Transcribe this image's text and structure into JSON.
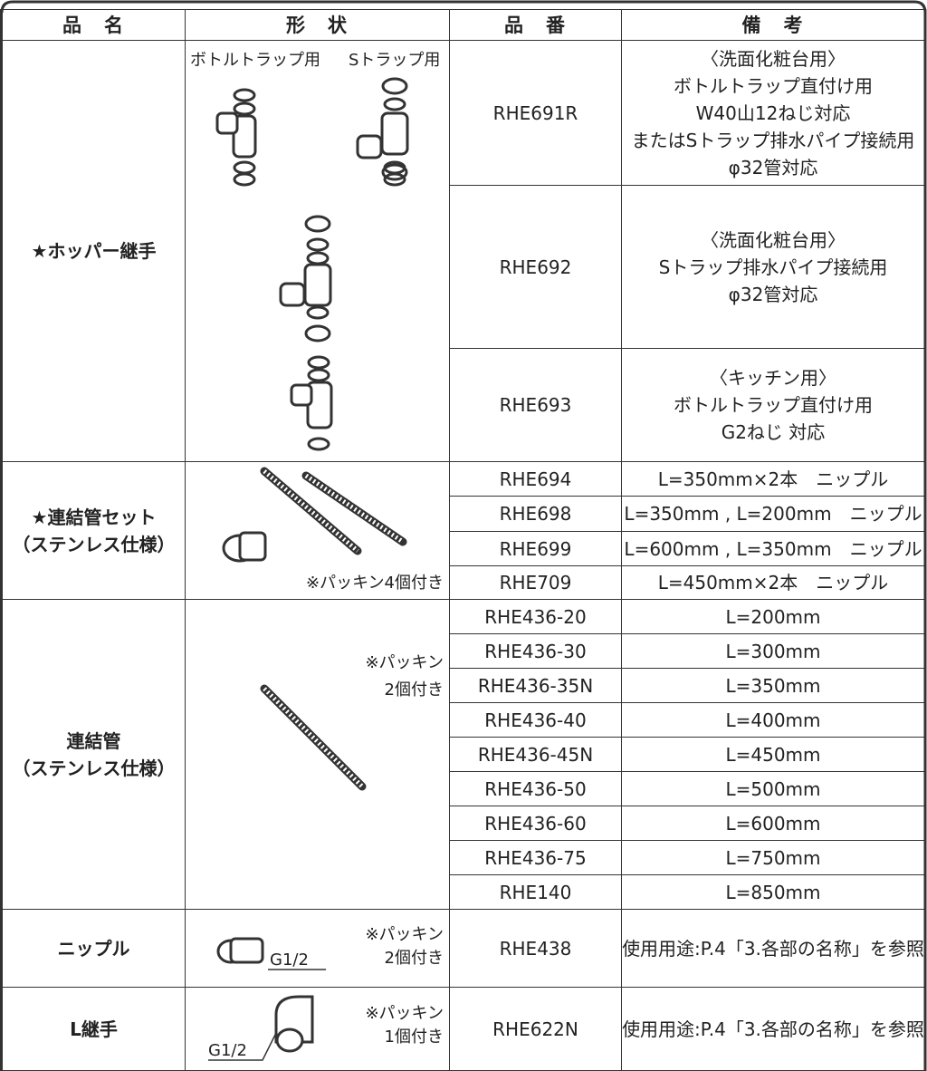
{
  "header": [
    "品　名",
    "形　状",
    "品　番",
    "備　考"
  ],
  "groups": [
    {
      "name": [
        "★ホッパー継手"
      ],
      "shape_labels": [
        "ボトルトラップ用",
        "Sトラップ用"
      ],
      "rows": [
        {
          "code": "RHE691R",
          "note": [
            "〈洗面化粧台用〉",
            "ボトルトラップ直付け用",
            "W40山12ねじ対応",
            "またはSトラップ排水パイプ接続用",
            "φ32管対応"
          ]
        },
        {
          "code": "RHE692",
          "note": [
            "〈洗面化粧台用〉",
            "Sトラップ排水パイプ接続用",
            "φ32管対応"
          ]
        },
        {
          "code": "RHE693",
          "note": [
            "〈キッチン用〉",
            "ボトルトラップ直付け用",
            "G2ねじ 対応"
          ]
        }
      ]
    },
    {
      "name": [
        "★連結管セット",
        "（ステンレス仕様）"
      ],
      "shape_labels": [
        "※パッキン4個付き"
      ],
      "rows": [
        {
          "code": "RHE694",
          "note": [
            "L=350mm×2本　ニップル"
          ]
        },
        {
          "code": "RHE698",
          "note": [
            "L=350mm , L=200mm　ニップル"
          ]
        },
        {
          "code": "RHE699",
          "note": [
            "L=600mm , L=350mm　ニップル"
          ]
        },
        {
          "code": "RHE709",
          "note": [
            "L=450mm×2本　ニップル"
          ]
        }
      ]
    },
    {
      "name": [
        "連結管",
        "（ステンレス仕様）"
      ],
      "shape_labels": [
        "※パッキン",
        "2個付き"
      ],
      "rows": [
        {
          "code": "RHE436-20",
          "note": [
            "L=200mm"
          ]
        },
        {
          "code": "RHE436-30",
          "note": [
            "L=300mm"
          ]
        },
        {
          "code": "RHE436-35N",
          "note": [
            "L=350mm"
          ]
        },
        {
          "code": "RHE436-40",
          "note": [
            "L=400mm"
          ]
        },
        {
          "code": "RHE436-45N",
          "note": [
            "L=450mm"
          ]
        },
        {
          "code": "RHE436-50",
          "note": [
            "L=500mm"
          ]
        },
        {
          "code": "RHE436-60",
          "note": [
            "L=600mm"
          ]
        },
        {
          "code": "RHE436-75",
          "note": [
            "L=750mm"
          ]
        },
        {
          "code": "RHE140",
          "note": [
            "L=850mm"
          ]
        }
      ]
    },
    {
      "name": [
        "ニップル"
      ],
      "shape_labels": [
        "※パッキン",
        "2個付き",
        "G1/2"
      ],
      "rows": [
        {
          "code": "RHE438",
          "note": [
            "使用用途:P.4「3.各部の名称」を参照"
          ]
        }
      ]
    },
    {
      "name": [
        "L継手"
      ],
      "shape_labels": [
        "※パッキン",
        "1個付き",
        "G1/2"
      ],
      "rows": [
        {
          "code": "RHE622N",
          "note": [
            "使用用途:P.4「3.各部の名称」を参照"
          ]
        }
      ]
    }
  ]
}
